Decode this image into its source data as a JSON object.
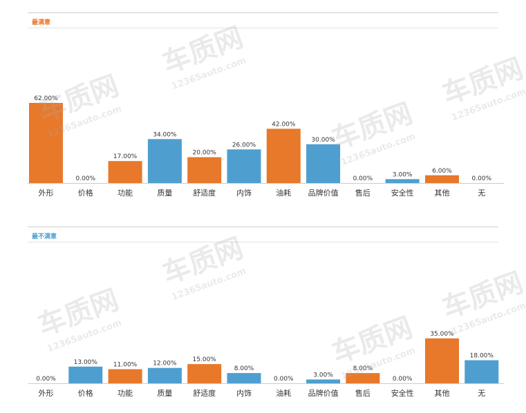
{
  "watermark": {
    "brand": "车质网",
    "site": "12365auto.com"
  },
  "colors": {
    "orange": "#E8782A",
    "blue": "#4E9FD0",
    "label": "#333333",
    "axis": "#cccccc"
  },
  "chart_data": [
    {
      "type": "bar",
      "title": "最满意",
      "title_color": "#E8782A",
      "categories": [
        "外形",
        "价格",
        "功能",
        "质量",
        "舒适度",
        "内饰",
        "油耗",
        "品牌价值",
        "售后",
        "安全性",
        "其他",
        "无"
      ],
      "values": [
        62.0,
        0.0,
        17.0,
        34.0,
        20.0,
        26.0,
        42.0,
        30.0,
        0.0,
        3.0,
        6.0,
        0.0
      ],
      "value_labels": [
        "62.00%",
        "0.00%",
        "17.00%",
        "34.00%",
        "20.00%",
        "26.00%",
        "42.00%",
        "30.00%",
        "0.00%",
        "3.00%",
        "6.00%",
        "0.00%"
      ],
      "bar_colors": [
        "orange",
        "orange",
        "orange",
        "blue",
        "orange",
        "blue",
        "orange",
        "blue",
        "orange",
        "blue",
        "orange",
        "orange"
      ],
      "unit": "%",
      "ylim": [
        0,
        62
      ],
      "grid": false,
      "legend": "none"
    },
    {
      "type": "bar",
      "title": "最不满意",
      "title_color": "#4E9FD0",
      "categories": [
        "外形",
        "价格",
        "功能",
        "质量",
        "舒适度",
        "内饰",
        "油耗",
        "品牌价值",
        "售后",
        "安全性",
        "其他",
        "无"
      ],
      "values": [
        0.0,
        13.0,
        11.0,
        12.0,
        15.0,
        8.0,
        0.0,
        3.0,
        8.0,
        0.0,
        35.0,
        18.0
      ],
      "value_labels": [
        "0.00%",
        "13.00%",
        "11.00%",
        "12.00%",
        "15.00%",
        "8.00%",
        "0.00%",
        "3.00%",
        "8.00%",
        "0.00%",
        "35.00%",
        "18.00%"
      ],
      "bar_colors": [
        "blue",
        "blue",
        "orange",
        "blue",
        "orange",
        "blue",
        "blue",
        "blue",
        "orange",
        "blue",
        "orange",
        "blue"
      ],
      "unit": "%",
      "ylim": [
        0,
        35
      ],
      "grid": false,
      "legend": "none"
    }
  ]
}
